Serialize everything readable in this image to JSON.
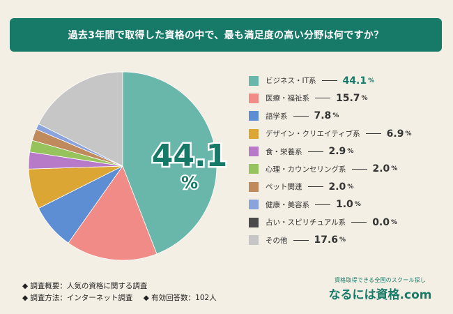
{
  "title": "過去3年間で取得した資格の中で、最も満足度の高い分野は何ですか？",
  "chart_data": {
    "type": "pie",
    "unit": "%",
    "slices": [
      {
        "label": "ビジネス・IT系",
        "value": 44.1,
        "display": "44.1",
        "color": "#69b6ab"
      },
      {
        "label": "医療・福祉系",
        "value": 15.7,
        "display": "15.7",
        "color": "#f08b87"
      },
      {
        "label": "語学系",
        "value": 7.8,
        "display": "7.8",
        "color": "#5d8dd3"
      },
      {
        "label": "デザイン・クリエイティブ系",
        "value": 6.9,
        "display": "6.9",
        "color": "#dba634"
      },
      {
        "label": "食・栄養系",
        "value": 2.9,
        "display": "2.9",
        "color": "#b77ac8"
      },
      {
        "label": "心理・カウンセリング系",
        "value": 2.0,
        "display": "2.0",
        "color": "#97c35d"
      },
      {
        "label": "ペット関連",
        "value": 2.0,
        "display": "2.0",
        "color": "#c08b5c"
      },
      {
        "label": "健康・美容系",
        "value": 1.0,
        "display": "1.0",
        "color": "#8aa3dc"
      },
      {
        "label": "占い・スピリチュアル系",
        "value": 0.0,
        "display": "0.0",
        "color": "#4a4a4a"
      },
      {
        "label": "その他",
        "value": 17.6,
        "display": "17.6",
        "color": "#c6c6c6"
      }
    ],
    "highlight": {
      "value": "44.1",
      "unit": "%"
    }
  },
  "notes": {
    "survey_overview": "◆ 調査概要：人気の資格に関する調査",
    "survey_method": "◆ 調査方法：インターネット調査",
    "valid_responses": "◆ 有効回答数：102人"
  },
  "brand": {
    "tagline": "資格取得できる全国のスクール探し",
    "logo": "なるには資格.com"
  }
}
